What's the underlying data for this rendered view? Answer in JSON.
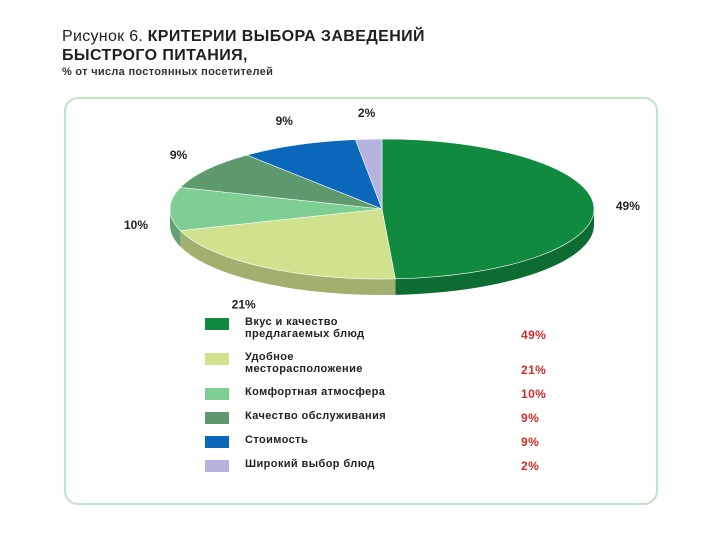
{
  "header": {
    "prefix": "Рисунок 6.",
    "title_line1": "КРИТЕРИИ ВЫБОРА ЗАВЕДЕНИЙ",
    "title_line2": "БЫСТРОГО ПИТАНИЯ,",
    "subtitle": "% от числа постоянных посетителей"
  },
  "chart_data": {
    "type": "pie",
    "categories": [
      "Вкус и качество предлагаемых блюд",
      "Удобное месторасположение",
      "Комфортная атмосфера",
      "Качество обслуживания",
      "Стоимость",
      "Широкий выбор блюд"
    ],
    "values": [
      49,
      21,
      10,
      9,
      9,
      2
    ],
    "value_labels": [
      "49%",
      "21%",
      "10%",
      "9%",
      "9%",
      "2%"
    ],
    "colors": [
      "#0f8a3f",
      "#cfe28e",
      "#7fcf95",
      "#5e9a6d",
      "#0b67b9",
      "#b7b3df"
    ],
    "title": "КРИТЕРИИ ВЫБОРА ЗАВЕДЕНИЙ БЫСТРОГО ПИТАНИЯ,",
    "subtitle": "% от числа постоянных посетителей",
    "legend_position": "bottom"
  },
  "legend": [
    {
      "label_lines": [
        "Вкус и качество",
        "предлагаемых блюд"
      ],
      "value": "49%",
      "color": "#0f8a3f"
    },
    {
      "label_lines": [
        "Удобное",
        "месторасположение"
      ],
      "value": "21%",
      "color": "#cfe28e"
    },
    {
      "label_lines": [
        "Комфортная атмосфера"
      ],
      "value": "10%",
      "color": "#7fcf95"
    },
    {
      "label_lines": [
        "Качество обслуживания"
      ],
      "value": "9%",
      "color": "#5e9a6d"
    },
    {
      "label_lines": [
        "Стоимость"
      ],
      "value": "9%",
      "color": "#0b67b9"
    },
    {
      "label_lines": [
        "Широкий выбор блюд"
      ],
      "value": "2%",
      "color": "#b7b3df"
    }
  ]
}
